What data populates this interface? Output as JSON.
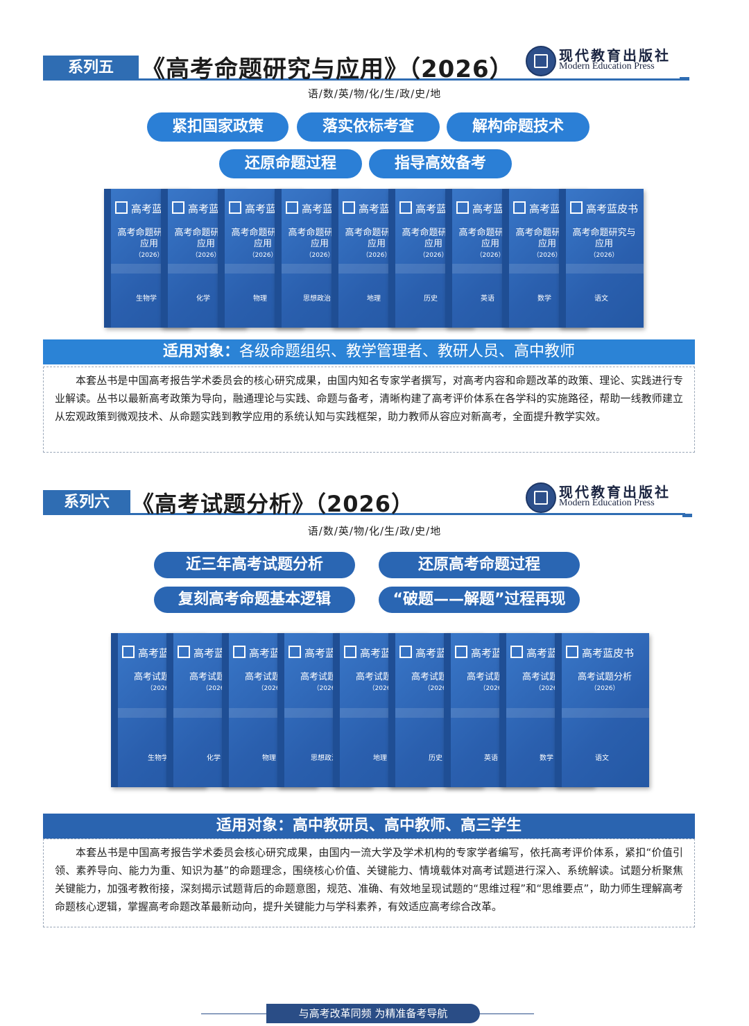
{
  "publisher": {
    "name_cn": "现代教育出版社",
    "name_en": "Modern Education Press"
  },
  "series5": {
    "tag": "系列五",
    "title": "《高考命题研究与应用》（2026）",
    "subjects": "语/数/英/物/化/生/政/史/地",
    "pills": [
      "紧扣国家政策",
      "落实依标考查",
      "解构命题技术",
      "还原命题过程",
      "指导高效备考"
    ],
    "book_brand": "高考蓝皮书",
    "book_title": "高考命题研究与应用",
    "book_year": "（2026）",
    "book_subjects": [
      "生物学",
      "化学",
      "物理",
      "思想政治",
      "地理",
      "历史",
      "英语",
      "数学",
      "语文"
    ],
    "audience_label": "适用对象：",
    "audience": "各级命题组织、教学管理者、教研人员、高中教师",
    "description": "本套丛书是中国高考报告学术委员会的核心研究成果，由国内知名专家学者撰写，对高考内容和命题改革的政策、理论、实践进行专业解读。丛书以最新高考政策为导向，融通理论与实践、命题与备考，清晰构建了高考评价体系在各学科的实施路径，帮助一线教师建立从宏观政策到微观技术、从命题实践到教学应用的系统认知与实践框架，助力教师从容应对新高考，全面提升教学实效。"
  },
  "series6": {
    "tag": "系列六",
    "title": "《高考试题分析》（2026）",
    "subjects": "语/数/英/物/化/生/政/史/地",
    "pills": [
      "近三年高考试题分析",
      "还原高考命题过程",
      "复刻高考命题基本逻辑",
      "“破题——解题”过程再现"
    ],
    "book_brand": "高考蓝皮书",
    "book_title": "高考试题分析",
    "book_year": "（2026）",
    "book_subjects": [
      "生物学",
      "化学",
      "物理",
      "思想政治",
      "地理",
      "历史",
      "英语",
      "数学",
      "语文"
    ],
    "audience_label": "适用对象：",
    "audience": "高中教研员、高中教师、高三学生",
    "description": "本套丛书是中国高考报告学术委员会核心研究成果，由国内一流大学及学术机构的专家学者编写，依托高考评价体系，紧扣“价值引领、素养导向、能力为重、知识为基”的命题理念，围绕核心价值、关键能力、情境载体对高考试题进行深入、系统解读。试题分析聚焦关键能力，加强考教衔接，深刻揭示试题背后的命题意图，规范、准确、有效地呈现试题的“思维过程”和“思维要点”，助力师生理解高考命题核心逻辑，掌握高考命题改革最新动向，提升关键能力与学科素养，有效适应高考综合改革。"
  },
  "footer": "与高考改革同频  为精准备考导航",
  "colors": {
    "primary": "#2f6db3",
    "pill": "#2b7fd6",
    "book": "#2a5fae",
    "footer": "#2a4d86"
  }
}
